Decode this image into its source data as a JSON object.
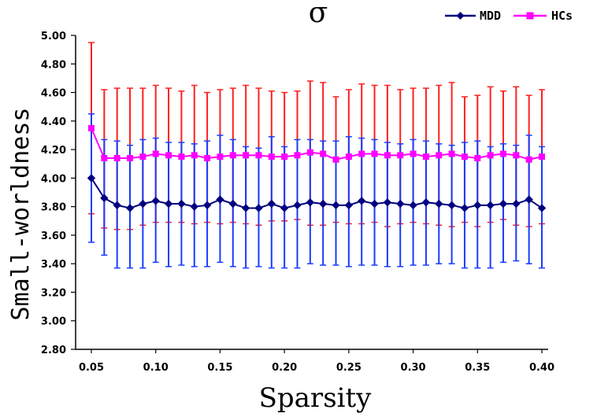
{
  "chart_data": {
    "type": "line",
    "title": "σ",
    "xlabel": "Sparsity",
    "ylabel": "Small-worldness",
    "xlim": [
      0.05,
      0.4
    ],
    "ylim": [
      2.8,
      5.0
    ],
    "x_ticks": [
      "0.05",
      "0.10",
      "0.15",
      "0.20",
      "0.25",
      "0.30",
      "0.35",
      "0.40"
    ],
    "x_tick_values": [
      0.05,
      0.1,
      0.15,
      0.2,
      0.25,
      0.3,
      0.35,
      0.4
    ],
    "y_ticks": [
      "2.80",
      "3.00",
      "3.20",
      "3.40",
      "3.60",
      "3.80",
      "4.00",
      "4.20",
      "4.40",
      "4.60",
      "4.80",
      "5.00"
    ],
    "y_tick_values": [
      2.8,
      3.0,
      3.2,
      3.4,
      3.6,
      3.8,
      4.0,
      4.2,
      4.4,
      4.6,
      4.8,
      5.0
    ],
    "legend_position": "top-right",
    "x": [
      0.05,
      0.06,
      0.07,
      0.08,
      0.09,
      0.1,
      0.11,
      0.12,
      0.13,
      0.14,
      0.15,
      0.16,
      0.17,
      0.18,
      0.19,
      0.2,
      0.21,
      0.22,
      0.23,
      0.24,
      0.25,
      0.26,
      0.27,
      0.28,
      0.29,
      0.3,
      0.31,
      0.32,
      0.33,
      0.34,
      0.35,
      0.36,
      0.37,
      0.38,
      0.39,
      0.4
    ],
    "series": [
      {
        "name": "MDD",
        "color": "#000080",
        "error_color": "#1a3cff",
        "marker": "diamond",
        "values": [
          4.0,
          3.86,
          3.81,
          3.79,
          3.82,
          3.84,
          3.82,
          3.82,
          3.8,
          3.81,
          3.85,
          3.82,
          3.79,
          3.79,
          3.82,
          3.79,
          3.81,
          3.83,
          3.82,
          3.81,
          3.81,
          3.84,
          3.82,
          3.83,
          3.82,
          3.81,
          3.83,
          3.82,
          3.81,
          3.79,
          3.81,
          3.81,
          3.82,
          3.82,
          3.85,
          3.79
        ],
        "error_low": [
          3.55,
          3.46,
          3.37,
          3.37,
          3.37,
          3.41,
          3.38,
          3.39,
          3.38,
          3.38,
          3.41,
          3.38,
          3.37,
          3.38,
          3.37,
          3.37,
          3.37,
          3.4,
          3.39,
          3.39,
          3.38,
          3.39,
          3.39,
          3.38,
          3.38,
          3.39,
          3.39,
          3.4,
          3.4,
          3.37,
          3.37,
          3.37,
          3.41,
          3.42,
          3.4,
          3.37
        ],
        "error_high": [
          4.45,
          4.27,
          4.26,
          4.23,
          4.27,
          4.28,
          4.25,
          4.25,
          4.24,
          4.26,
          4.3,
          4.27,
          4.22,
          4.21,
          4.29,
          4.22,
          4.27,
          4.27,
          4.26,
          4.26,
          4.29,
          4.28,
          4.27,
          4.25,
          4.24,
          4.27,
          4.26,
          4.24,
          4.23,
          4.25,
          4.26,
          4.22,
          4.24,
          4.23,
          4.3,
          4.22
        ]
      },
      {
        "name": "HCs",
        "color": "#ff00ff",
        "error_color": "#ff2020",
        "marker": "square",
        "values": [
          4.35,
          4.14,
          4.14,
          4.14,
          4.15,
          4.17,
          4.16,
          4.15,
          4.16,
          4.14,
          4.15,
          4.16,
          4.16,
          4.16,
          4.15,
          4.15,
          4.16,
          4.18,
          4.17,
          4.13,
          4.15,
          4.17,
          4.17,
          4.16,
          4.16,
          4.17,
          4.15,
          4.16,
          4.17,
          4.15,
          4.14,
          4.16,
          4.17,
          4.16,
          4.13,
          4.15
        ],
        "error_low": [
          3.75,
          3.65,
          3.64,
          3.64,
          3.67,
          3.69,
          3.69,
          3.69,
          3.68,
          3.69,
          3.68,
          3.69,
          3.68,
          3.67,
          3.7,
          3.7,
          3.71,
          3.67,
          3.67,
          3.69,
          3.68,
          3.68,
          3.69,
          3.66,
          3.68,
          3.69,
          3.68,
          3.67,
          3.66,
          3.69,
          3.66,
          3.69,
          3.71,
          3.67,
          3.66,
          3.68
        ],
        "error_high": [
          4.95,
          4.62,
          4.63,
          4.63,
          4.63,
          4.65,
          4.63,
          4.61,
          4.65,
          4.6,
          4.62,
          4.63,
          4.65,
          4.63,
          4.61,
          4.6,
          4.61,
          4.68,
          4.67,
          4.57,
          4.62,
          4.66,
          4.65,
          4.65,
          4.62,
          4.63,
          4.63,
          4.65,
          4.67,
          4.57,
          4.58,
          4.64,
          4.61,
          4.64,
          4.58,
          4.62
        ]
      }
    ]
  }
}
